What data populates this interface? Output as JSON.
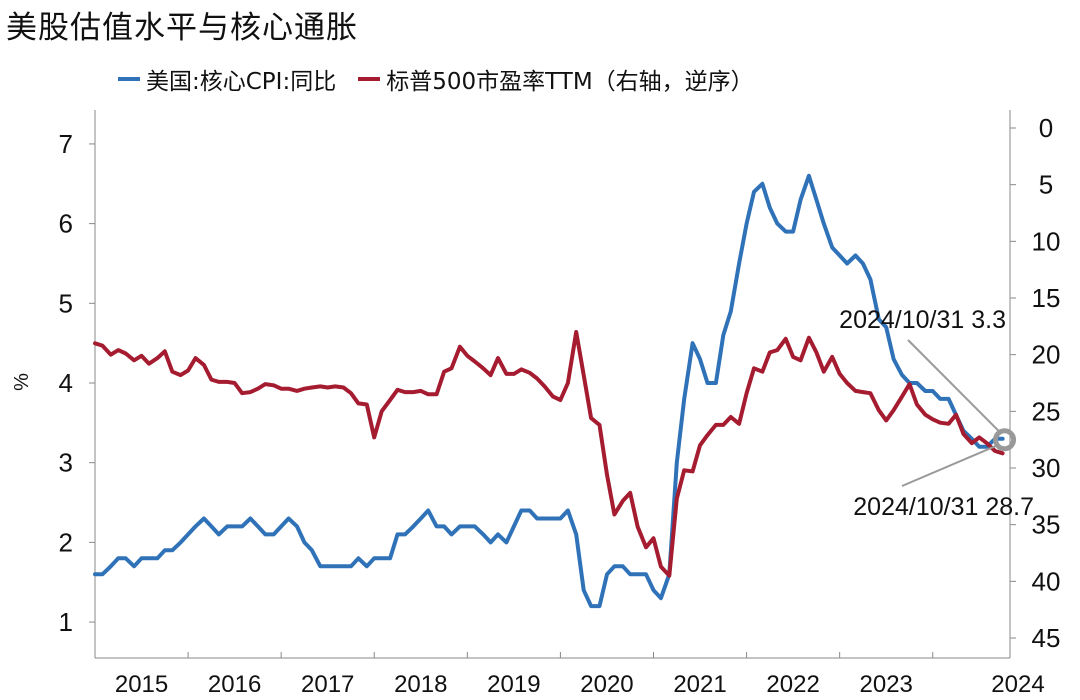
{
  "title": "美股估值水平与核心通胀",
  "chart_data": {
    "type": "line",
    "title": "美股估值水平与核心通胀",
    "y_left_label": "%",
    "y_left_ticks": [
      "1",
      "2",
      "3",
      "4",
      "5",
      "6",
      "7"
    ],
    "y_left_lim": [
      0.8,
      7.2
    ],
    "y_right_ticks": [
      "0",
      "5",
      "10",
      "15",
      "20",
      "25",
      "30",
      "35",
      "40",
      "45"
    ],
    "y_right_lim": [
      0,
      45
    ],
    "y_right_inverted": true,
    "x_ticks": [
      "2015",
      "2016",
      "2017",
      "2018",
      "2019",
      "2020",
      "2021",
      "2022",
      "2023",
      "2024"
    ],
    "x_lim": [
      2015.0,
      2024.83
    ],
    "series": [
      {
        "name": "美国:核心CPI:同比",
        "axis": "left",
        "color": "#2f72b8",
        "x": [
          2015.0,
          2015.08,
          2015.17,
          2015.25,
          2015.33,
          2015.42,
          2015.5,
          2015.58,
          2015.67,
          2015.75,
          2015.83,
          2015.92,
          2016.0,
          2016.08,
          2016.17,
          2016.25,
          2016.33,
          2016.42,
          2016.5,
          2016.58,
          2016.67,
          2016.75,
          2016.83,
          2016.92,
          2017.0,
          2017.08,
          2017.17,
          2017.25,
          2017.33,
          2017.42,
          2017.5,
          2017.58,
          2017.67,
          2017.75,
          2017.83,
          2017.92,
          2018.0,
          2018.08,
          2018.17,
          2018.25,
          2018.33,
          2018.42,
          2018.5,
          2018.58,
          2018.67,
          2018.75,
          2018.83,
          2018.92,
          2019.0,
          2019.08,
          2019.17,
          2019.25,
          2019.33,
          2019.42,
          2019.5,
          2019.58,
          2019.67,
          2019.75,
          2019.83,
          2019.92,
          2020.0,
          2020.08,
          2020.17,
          2020.25,
          2020.33,
          2020.42,
          2020.5,
          2020.58,
          2020.67,
          2020.75,
          2020.83,
          2020.92,
          2021.0,
          2021.08,
          2021.17,
          2021.25,
          2021.33,
          2021.42,
          2021.5,
          2021.58,
          2021.67,
          2021.75,
          2021.83,
          2021.92,
          2022.0,
          2022.08,
          2022.17,
          2022.25,
          2022.33,
          2022.42,
          2022.5,
          2022.58,
          2022.67,
          2022.75,
          2022.83,
          2022.92,
          2023.0,
          2023.08,
          2023.17,
          2023.25,
          2023.33,
          2023.42,
          2023.5,
          2023.58,
          2023.67,
          2023.75,
          2023.83,
          2023.92,
          2024.0,
          2024.08,
          2024.17,
          2024.25,
          2024.33,
          2024.42,
          2024.5,
          2024.58,
          2024.67,
          2024.75
        ],
        "values": [
          1.6,
          1.6,
          1.7,
          1.8,
          1.8,
          1.7,
          1.8,
          1.8,
          1.8,
          1.9,
          1.9,
          2.0,
          2.1,
          2.2,
          2.3,
          2.2,
          2.1,
          2.2,
          2.2,
          2.2,
          2.3,
          2.2,
          2.1,
          2.1,
          2.2,
          2.3,
          2.2,
          2.0,
          1.9,
          1.7,
          1.7,
          1.7,
          1.7,
          1.7,
          1.8,
          1.7,
          1.8,
          1.8,
          1.8,
          2.1,
          2.1,
          2.2,
          2.3,
          2.4,
          2.2,
          2.2,
          2.1,
          2.2,
          2.2,
          2.2,
          2.1,
          2.0,
          2.1,
          2.0,
          2.2,
          2.4,
          2.4,
          2.3,
          2.3,
          2.3,
          2.3,
          2.4,
          2.1,
          1.4,
          1.2,
          1.2,
          1.6,
          1.7,
          1.7,
          1.6,
          1.6,
          1.6,
          1.4,
          1.3,
          1.6,
          3.0,
          3.8,
          4.5,
          4.3,
          4.0,
          4.0,
          4.6,
          4.9,
          5.5,
          6.0,
          6.4,
          6.5,
          6.2,
          6.0,
          5.9,
          5.9,
          6.3,
          6.6,
          6.3,
          6.0,
          5.7,
          5.6,
          5.5,
          5.6,
          5.5,
          5.3,
          4.8,
          4.7,
          4.3,
          4.1,
          4.0,
          4.0,
          3.9,
          3.9,
          3.8,
          3.8,
          3.6,
          3.4,
          3.3,
          3.2,
          3.2,
          3.3,
          3.3
        ]
      },
      {
        "name": "标普500市盈率TTM（右轴，逆序）",
        "axis": "right",
        "color": "#a51c30",
        "x": [
          2015.0,
          2015.08,
          2015.17,
          2015.25,
          2015.33,
          2015.42,
          2015.5,
          2015.58,
          2015.67,
          2015.75,
          2015.83,
          2015.92,
          2016.0,
          2016.08,
          2016.17,
          2016.25,
          2016.33,
          2016.42,
          2016.5,
          2016.58,
          2016.67,
          2016.75,
          2016.83,
          2016.92,
          2017.0,
          2017.08,
          2017.17,
          2017.25,
          2017.33,
          2017.42,
          2017.5,
          2017.58,
          2017.67,
          2017.75,
          2017.83,
          2017.92,
          2018.0,
          2018.08,
          2018.17,
          2018.25,
          2018.33,
          2018.42,
          2018.5,
          2018.58,
          2018.67,
          2018.75,
          2018.83,
          2018.92,
          2019.0,
          2019.08,
          2019.17,
          2019.25,
          2019.33,
          2019.42,
          2019.5,
          2019.58,
          2019.67,
          2019.75,
          2019.83,
          2019.92,
          2020.0,
          2020.08,
          2020.17,
          2020.25,
          2020.33,
          2020.42,
          2020.5,
          2020.58,
          2020.67,
          2020.75,
          2020.83,
          2020.92,
          2021.0,
          2021.08,
          2021.17,
          2021.25,
          2021.33,
          2021.42,
          2021.5,
          2021.58,
          2021.67,
          2021.75,
          2021.83,
          2021.92,
          2022.0,
          2022.08,
          2022.17,
          2022.25,
          2022.33,
          2022.42,
          2022.5,
          2022.58,
          2022.67,
          2022.75,
          2022.83,
          2022.92,
          2023.0,
          2023.08,
          2023.17,
          2023.25,
          2023.33,
          2023.42,
          2023.5,
          2023.58,
          2023.67,
          2023.75,
          2023.83,
          2023.92,
          2024.0,
          2024.08,
          2024.17,
          2024.25,
          2024.33,
          2024.42,
          2024.5,
          2024.58,
          2024.67,
          2024.75
        ],
        "values": [
          19.0,
          19.2,
          20.0,
          19.6,
          19.9,
          20.5,
          20.1,
          20.8,
          20.3,
          19.7,
          21.5,
          21.8,
          21.4,
          20.3,
          20.9,
          22.2,
          22.4,
          22.4,
          22.5,
          23.4,
          23.3,
          23.0,
          22.6,
          22.7,
          23.0,
          23.0,
          23.2,
          23.0,
          22.9,
          22.8,
          22.9,
          22.8,
          22.9,
          23.4,
          24.3,
          24.4,
          27.3,
          25.0,
          24.0,
          23.1,
          23.3,
          23.3,
          23.2,
          23.5,
          23.5,
          21.5,
          21.2,
          19.3,
          20.1,
          20.6,
          21.2,
          21.8,
          20.3,
          21.7,
          21.7,
          21.3,
          21.6,
          22.1,
          22.8,
          23.7,
          24.0,
          22.5,
          18.0,
          21.8,
          25.6,
          26.2,
          30.6,
          34.1,
          32.9,
          32.2,
          35.2,
          37.0,
          36.2,
          38.7,
          39.5,
          32.7,
          30.2,
          30.3,
          28.0,
          27.1,
          26.2,
          26.2,
          25.5,
          26.1,
          23.4,
          21.2,
          21.5,
          19.8,
          19.6,
          18.6,
          20.2,
          20.5,
          18.5,
          19.8,
          21.5,
          20.2,
          21.7,
          22.5,
          23.2,
          23.3,
          23.4,
          24.9,
          25.8,
          24.9,
          23.7,
          22.6,
          24.4,
          25.3,
          25.7,
          26.0,
          26.1,
          25.3,
          27.0,
          27.8,
          27.3,
          27.8,
          28.5,
          28.7
        ]
      }
    ],
    "annotations": [
      {
        "text": "2024/10/31 3.3",
        "x": 2024.75,
        "series": 0
      },
      {
        "text": "2024/10/31 28.7",
        "x": 2024.75,
        "series": 1
      }
    ]
  }
}
